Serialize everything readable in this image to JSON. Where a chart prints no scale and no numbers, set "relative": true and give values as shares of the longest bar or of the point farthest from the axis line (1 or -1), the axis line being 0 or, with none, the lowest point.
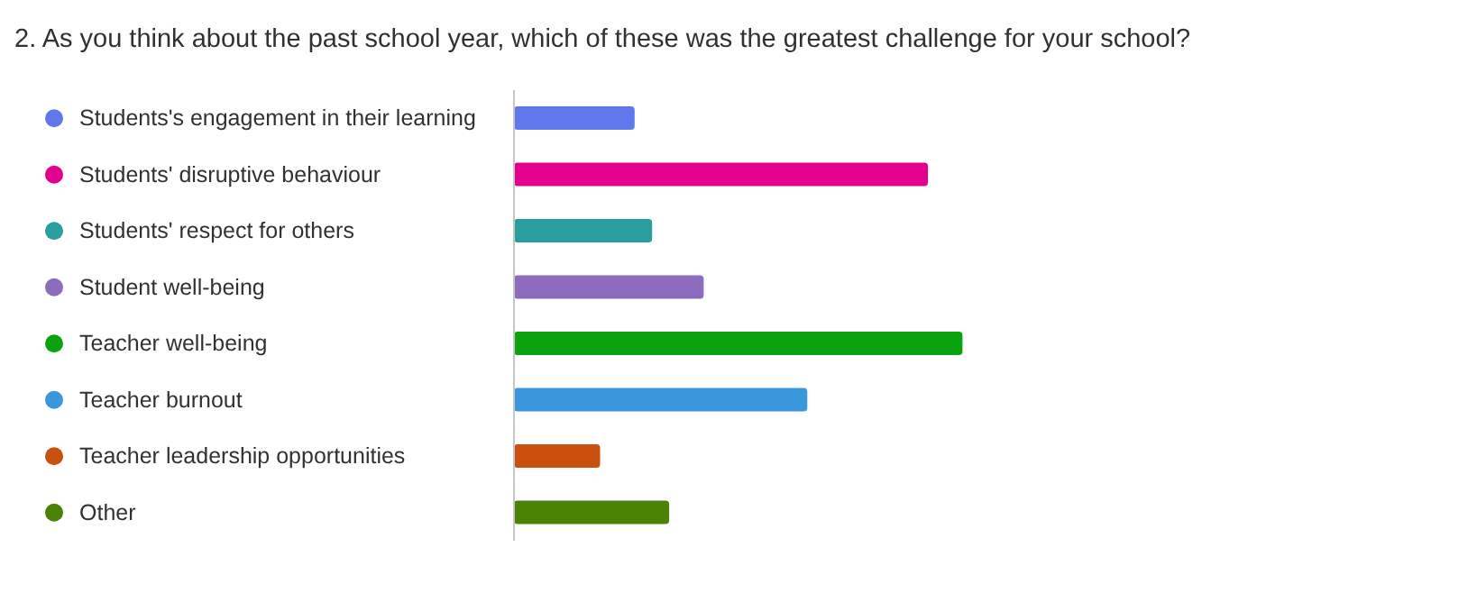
{
  "chart_data": {
    "type": "bar",
    "orientation": "horizontal",
    "relative": true,
    "title": "2. As you think about the past school year, which of these was the greatest challenge for your school?",
    "categories": [
      "Students's engagement in their learning",
      "Students' disruptive behaviour",
      "Students' respect for others",
      "Student well-being",
      "Teacher well-being",
      "Teacher burnout",
      "Teacher leadership opportunities",
      "Other"
    ],
    "values": [
      0.269,
      0.923,
      0.308,
      0.423,
      1,
      0.654,
      0.192,
      0.346
    ],
    "colors": [
      "#6078ea",
      "#e3008c",
      "#2a9d9f",
      "#8d6cc0",
      "#0aa20f",
      "#3a96dd",
      "#ca5010",
      "#498205"
    ]
  }
}
